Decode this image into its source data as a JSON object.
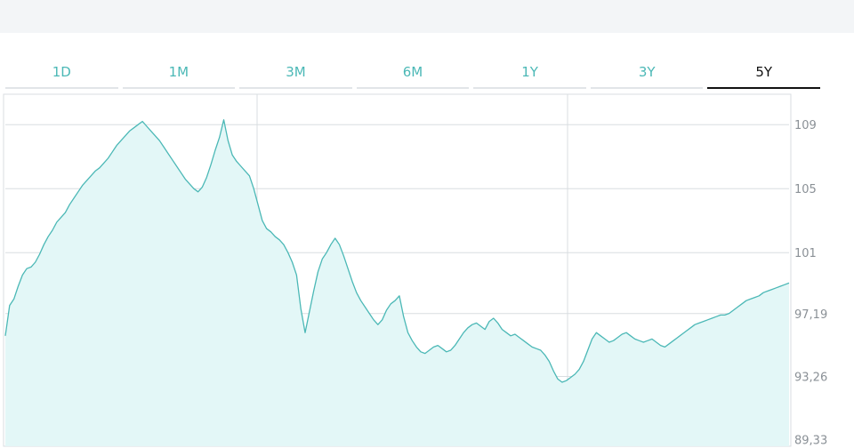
{
  "tabs": [
    {
      "label": "1D",
      "active": false
    },
    {
      "label": "1M",
      "active": false
    },
    {
      "label": "3M",
      "active": false
    },
    {
      "label": "6M",
      "active": false
    },
    {
      "label": "1Y",
      "active": false
    },
    {
      "label": "3Y",
      "active": false
    },
    {
      "label": "5Y",
      "active": true
    }
  ],
  "colors": {
    "line": "#4bb8b6",
    "fill": "#e3f7f7",
    "grid": "#d9dde0",
    "tab_text": "#4bb8b6",
    "tab_active_text": "#111111"
  },
  "chart_data": {
    "type": "area",
    "title": "",
    "xlabel": "",
    "ylabel": "",
    "ylim": [
      88.9,
      110.9
    ],
    "yticks": [
      {
        "value": 109,
        "label": "109"
      },
      {
        "value": 105,
        "label": "105"
      },
      {
        "value": 101,
        "label": "101"
      },
      {
        "value": 97.19,
        "label": "97,19"
      },
      {
        "value": 93.26,
        "label": "93,26"
      },
      {
        "value": 89.33,
        "label": "89,33"
      }
    ],
    "grid": true,
    "series": [
      {
        "values": [
          95.8,
          97.7,
          98.1,
          98.9,
          99.6,
          100.0,
          100.1,
          100.4,
          100.9,
          101.5,
          102.0,
          102.4,
          102.9,
          103.2,
          103.5,
          104.0,
          104.4,
          104.8,
          105.2,
          105.5,
          105.8,
          106.1,
          106.3,
          106.6,
          106.9,
          107.3,
          107.7,
          108.0,
          108.3,
          108.6,
          108.8,
          109.0,
          109.2,
          108.9,
          108.6,
          108.3,
          108.0,
          107.6,
          107.2,
          106.8,
          106.4,
          106.0,
          105.6,
          105.3,
          105.0,
          104.8,
          105.1,
          105.7,
          106.5,
          107.4,
          108.2,
          109.3,
          108.0,
          107.1,
          106.7,
          106.4,
          106.1,
          105.8,
          105.0,
          104.0,
          103.0,
          102.5,
          102.3,
          102.0,
          101.8,
          101.5,
          101.0,
          100.4,
          99.6,
          97.5,
          96.0,
          97.3,
          98.6,
          99.8,
          100.6,
          101.0,
          101.5,
          101.9,
          101.5,
          100.8,
          100.0,
          99.2,
          98.5,
          98.0,
          97.6,
          97.2,
          96.8,
          96.5,
          96.8,
          97.4,
          97.8,
          98.0,
          98.3,
          97.0,
          96.0,
          95.5,
          95.1,
          94.8,
          94.7,
          94.9,
          95.1,
          95.2,
          95.0,
          94.8,
          94.9,
          95.2,
          95.6,
          96.0,
          96.3,
          96.5,
          96.6,
          96.4,
          96.2,
          96.7,
          96.9,
          96.6,
          96.2,
          96.0,
          95.8,
          95.9,
          95.7,
          95.5,
          95.3,
          95.1,
          95.0,
          94.9,
          94.6,
          94.2,
          93.6,
          93.1,
          92.9,
          93.0,
          93.2,
          93.4,
          93.7,
          94.2,
          94.9,
          95.6,
          96.0,
          95.8,
          95.6,
          95.4,
          95.5,
          95.7,
          95.9,
          96.0,
          95.8,
          95.6,
          95.5,
          95.4,
          95.5,
          95.6,
          95.4,
          95.2,
          95.1,
          95.3,
          95.5,
          95.7,
          95.9,
          96.1,
          96.3,
          96.5,
          96.6,
          96.7,
          96.8,
          96.9,
          97.0,
          97.1,
          97.1,
          97.2,
          97.4,
          97.6,
          97.8,
          98.0,
          98.1,
          98.2,
          98.3,
          98.5,
          98.6,
          98.7,
          98.8,
          98.9,
          99.0,
          99.1
        ]
      }
    ]
  }
}
